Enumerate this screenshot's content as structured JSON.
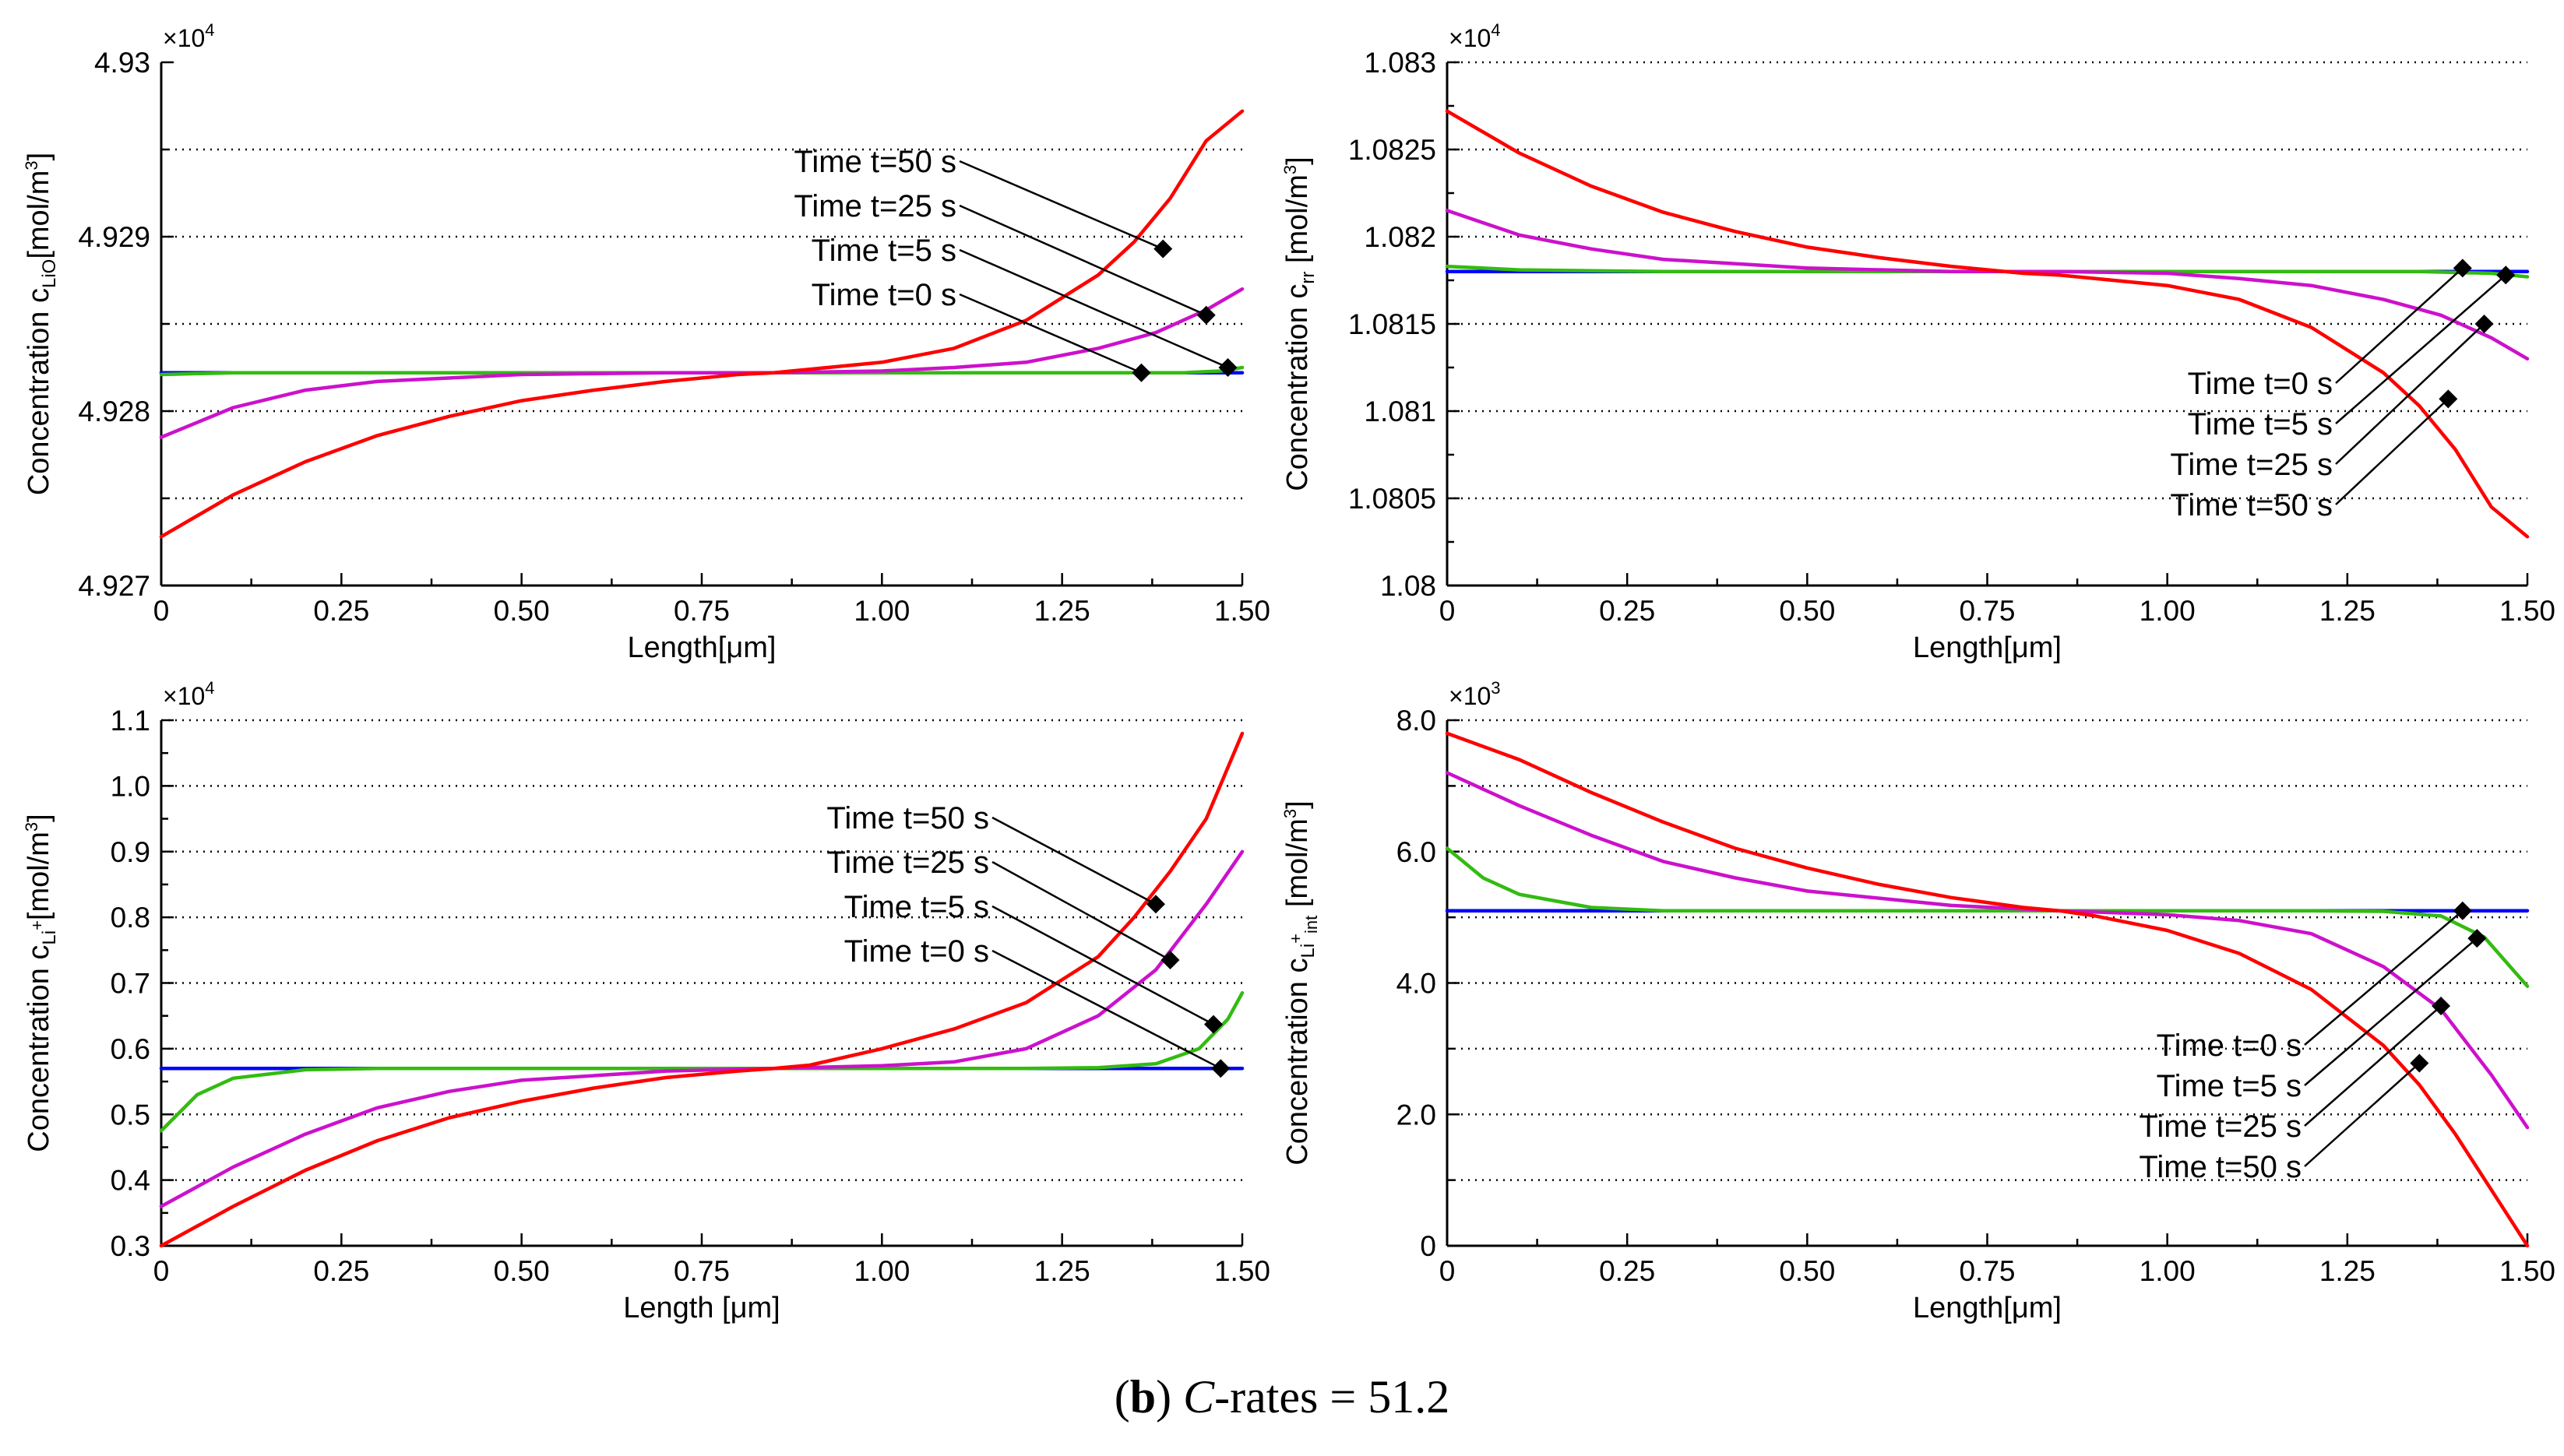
{
  "caption": {
    "prefix": "(",
    "letter": "b",
    "suffix": ") ",
    "italic": "C",
    "rest": "-rates = 51.2"
  },
  "chart_data": [
    {
      "type": "line",
      "panel": "top-left",
      "multiplier": {
        "base": "×10",
        "exp": "4"
      },
      "xlabel": {
        "main": "Length[",
        "unit": "μ",
        "tail": "m]"
      },
      "ylabel": {
        "pre": "Concentration c",
        "sub": "LiO",
        "post": "[mol/m",
        "sup": "3",
        "end": "]"
      },
      "xlim": [
        0,
        1.5
      ],
      "ylim": [
        4.927,
        4.93
      ],
      "xticks": [
        0,
        0.25,
        0.5,
        0.75,
        1.0,
        1.25,
        1.5
      ],
      "xtick_labels": [
        "0",
        "0.25",
        "0.50",
        "0.75",
        "1.00",
        "1.25",
        "1.50"
      ],
      "yticks": [
        4.927,
        4.928,
        4.929,
        4.93
      ],
      "ytick_labels": [
        "4.927",
        "4.928",
        "4.929",
        "4.93"
      ],
      "ygrid": [
        4.9275,
        4.928,
        4.9285,
        4.929,
        4.9295
      ],
      "series": [
        {
          "name": "Time t=0 s",
          "color": "#0000ff",
          "x": [
            0,
            1.5
          ],
          "y": [
            4.92822,
            4.92822
          ]
        },
        {
          "name": "Time t=5 s",
          "color": "#33bb11",
          "x": [
            0,
            0.1,
            0.3,
            0.6,
            0.9,
            1.2,
            1.35,
            1.42,
            1.47,
            1.5
          ],
          "y": [
            4.92821,
            4.92822,
            4.92822,
            4.92822,
            4.92822,
            4.92822,
            4.92822,
            4.92822,
            4.92823,
            4.92825
          ]
        },
        {
          "name": "Time t=25 s",
          "color": "#cc11cc",
          "x": [
            0,
            0.1,
            0.2,
            0.3,
            0.5,
            0.7,
            0.85,
            1.0,
            1.1,
            1.2,
            1.3,
            1.38,
            1.45,
            1.5
          ],
          "y": [
            4.92785,
            4.92802,
            4.92812,
            4.92817,
            4.92821,
            4.92822,
            4.92822,
            4.92823,
            4.92825,
            4.92828,
            4.92836,
            4.92845,
            4.92858,
            4.9287
          ]
        },
        {
          "name": "Time t=50 s",
          "color": "#ff0000",
          "x": [
            0,
            0.1,
            0.2,
            0.3,
            0.4,
            0.5,
            0.6,
            0.7,
            0.8,
            0.85,
            0.9,
            1.0,
            1.1,
            1.2,
            1.3,
            1.35,
            1.4,
            1.45,
            1.5
          ],
          "y": [
            4.92728,
            4.92752,
            4.92771,
            4.92786,
            4.92797,
            4.92806,
            4.92812,
            4.92817,
            4.92821,
            4.92822,
            4.92824,
            4.92828,
            4.92836,
            4.92852,
            4.92878,
            4.92897,
            4.92922,
            4.92955,
            4.92972
          ]
        }
      ],
      "markers": [
        {
          "x": 1.39,
          "y": 4.92893
        },
        {
          "x": 1.45,
          "y": 4.92855
        },
        {
          "x": 1.48,
          "y": 4.92825
        },
        {
          "x": 1.36,
          "y": 4.92822
        }
      ],
      "annotations": [
        "Time t=50 s",
        "Time t=25 s",
        "Time t=5 s",
        "Time t=0 s"
      ]
    },
    {
      "type": "line",
      "panel": "top-right",
      "multiplier": {
        "base": "×10",
        "exp": "4"
      },
      "xlabel": {
        "main": "Length[",
        "unit": "μ",
        "tail": "m]"
      },
      "ylabel": {
        "pre": "Concentration c",
        "sub": "rr",
        "post": " [mol/m",
        "sup": "3",
        "end": "]"
      },
      "xlim": [
        0,
        1.5
      ],
      "ylim": [
        1.08,
        1.083
      ],
      "xticks": [
        0,
        0.25,
        0.5,
        0.75,
        1.0,
        1.25,
        1.5
      ],
      "xtick_labels": [
        "0",
        "0.25",
        "0.50",
        "0.75",
        "1.00",
        "1.25",
        "1.50"
      ],
      "yticks": [
        1.08,
        1.0805,
        1.081,
        1.0815,
        1.082,
        1.0825,
        1.083
      ],
      "ytick_labels": [
        "1.08",
        "1.0805",
        "1.081",
        "1.0815",
        "1.082",
        "1.0825",
        "1.083"
      ],
      "ygrid": [
        1.0805,
        1.081,
        1.0815,
        1.082,
        1.0825,
        1.083
      ],
      "series": [
        {
          "name": "Time t=0 s",
          "color": "#0000ff",
          "x": [
            0,
            1.5
          ],
          "y": [
            1.0818,
            1.0818
          ]
        },
        {
          "name": "Time t=5 s",
          "color": "#33bb11",
          "x": [
            0,
            0.1,
            0.3,
            0.6,
            0.9,
            1.2,
            1.35,
            1.45,
            1.5
          ],
          "y": [
            1.08183,
            1.08181,
            1.0818,
            1.0818,
            1.0818,
            1.0818,
            1.0818,
            1.08179,
            1.08177
          ]
        },
        {
          "name": "Time t=25 s",
          "color": "#cc11cc",
          "x": [
            0,
            0.1,
            0.2,
            0.3,
            0.5,
            0.7,
            0.85,
            1.0,
            1.1,
            1.2,
            1.3,
            1.38,
            1.45,
            1.5
          ],
          "y": [
            1.08215,
            1.08201,
            1.08193,
            1.08187,
            1.08182,
            1.0818,
            1.0818,
            1.08179,
            1.08176,
            1.08172,
            1.08164,
            1.08155,
            1.08142,
            1.0813
          ]
        },
        {
          "name": "Time t=50 s",
          "color": "#ff0000",
          "x": [
            0,
            0.1,
            0.2,
            0.3,
            0.4,
            0.5,
            0.6,
            0.7,
            0.8,
            0.85,
            0.9,
            1.0,
            1.1,
            1.2,
            1.3,
            1.35,
            1.4,
            1.45,
            1.5
          ],
          "y": [
            1.08272,
            1.08248,
            1.08229,
            1.08214,
            1.08203,
            1.08194,
            1.08188,
            1.08183,
            1.08179,
            1.08178,
            1.08176,
            1.08172,
            1.08164,
            1.08148,
            1.08122,
            1.08103,
            1.08078,
            1.08045,
            1.08028
          ]
        }
      ],
      "markers": [
        {
          "x": 1.41,
          "y": 1.08182
        },
        {
          "x": 1.47,
          "y": 1.08178
        },
        {
          "x": 1.44,
          "y": 1.0815
        },
        {
          "x": 1.39,
          "y": 1.08107
        }
      ],
      "annotations": [
        "Time t=0 s",
        "Time t=5 s",
        "Time t=25 s",
        "Time t=50 s"
      ]
    },
    {
      "type": "line",
      "panel": "bottom-left",
      "multiplier": {
        "base": "×10",
        "exp": "4"
      },
      "xlabel": {
        "main": "Length [",
        "unit": "μ",
        "tail": "m]"
      },
      "ylabel": {
        "pre": "Concentration c",
        "sub": "Li",
        "subsup": "+",
        "post": "[mol/m",
        "sup": "3",
        "end": "]"
      },
      "xlim": [
        0,
        1.5
      ],
      "ylim": [
        0.3,
        1.1
      ],
      "xticks": [
        0,
        0.25,
        0.5,
        0.75,
        1.0,
        1.25,
        1.5
      ],
      "xtick_labels": [
        "0",
        "0.25",
        "0.50",
        "0.75",
        "1.00",
        "1.25",
        "1.50"
      ],
      "yticks": [
        0.3,
        0.4,
        0.5,
        0.6,
        0.7,
        0.8,
        0.9,
        1.0,
        1.1
      ],
      "ytick_labels": [
        "0.3",
        "0.4",
        "0.5",
        "0.6",
        "0.7",
        "0.8",
        "0.9",
        "1.0",
        "1.1"
      ],
      "ygrid": [
        0.4,
        0.5,
        0.6,
        0.7,
        0.8,
        0.9,
        1.0,
        1.1
      ],
      "series": [
        {
          "name": "Time t=0 s",
          "color": "#0000ff",
          "x": [
            0,
            1.5
          ],
          "y": [
            0.57,
            0.57
          ]
        },
        {
          "name": "Time t=5 s",
          "color": "#33bb11",
          "x": [
            0,
            0.05,
            0.1,
            0.2,
            0.3,
            0.6,
            0.9,
            1.2,
            1.3,
            1.38,
            1.44,
            1.48,
            1.5
          ],
          "y": [
            0.475,
            0.53,
            0.555,
            0.568,
            0.57,
            0.57,
            0.57,
            0.57,
            0.571,
            0.577,
            0.6,
            0.645,
            0.685
          ]
        },
        {
          "name": "Time t=25 s",
          "color": "#cc11cc",
          "x": [
            0,
            0.1,
            0.2,
            0.3,
            0.4,
            0.5,
            0.7,
            0.85,
            1.0,
            1.1,
            1.2,
            1.3,
            1.38,
            1.45,
            1.5
          ],
          "y": [
            0.36,
            0.42,
            0.47,
            0.51,
            0.535,
            0.552,
            0.566,
            0.57,
            0.574,
            0.58,
            0.6,
            0.65,
            0.72,
            0.82,
            0.9
          ]
        },
        {
          "name": "Time t=50 s",
          "color": "#ff0000",
          "x": [
            0,
            0.1,
            0.2,
            0.3,
            0.4,
            0.5,
            0.6,
            0.7,
            0.8,
            0.85,
            0.9,
            1.0,
            1.1,
            1.2,
            1.3,
            1.35,
            1.4,
            1.45,
            1.5
          ],
          "y": [
            0.3,
            0.36,
            0.415,
            0.46,
            0.495,
            0.52,
            0.54,
            0.556,
            0.566,
            0.57,
            0.575,
            0.6,
            0.63,
            0.67,
            0.74,
            0.8,
            0.87,
            0.95,
            1.08
          ]
        }
      ],
      "markers": [
        {
          "x": 1.38,
          "y": 0.82
        },
        {
          "x": 1.4,
          "y": 0.735
        },
        {
          "x": 1.46,
          "y": 0.637
        },
        {
          "x": 1.47,
          "y": 0.57
        }
      ],
      "annotations": [
        "Time t=50 s",
        "Time t=25 s",
        "Time t=5 s",
        "Time t=0 s"
      ]
    },
    {
      "type": "line",
      "panel": "bottom-right",
      "multiplier": {
        "base": "×10",
        "exp": "3"
      },
      "xlabel": {
        "main": "Length[",
        "unit": "μ",
        "tail": "m]"
      },
      "ylabel": {
        "pre": "Concentration c",
        "sub": "Li",
        "subsup": "+",
        "subsub": "int",
        "post": " [mol/m",
        "sup": "3",
        "end": "]"
      },
      "xlim": [
        0,
        1.5
      ],
      "ylim": [
        0,
        8.0
      ],
      "xticks": [
        0,
        0.25,
        0.5,
        0.75,
        1.0,
        1.25,
        1.5
      ],
      "xtick_labels": [
        "0",
        "0.25",
        "0.50",
        "0.75",
        "1.00",
        "1.25",
        "1.50"
      ],
      "yticks": [
        0,
        2.0,
        4.0,
        6.0,
        8.0
      ],
      "ytick_labels": [
        "0",
        "2.0",
        "4.0",
        "6.0",
        "8.0"
      ],
      "ygrid": [
        1,
        2,
        3,
        4,
        5,
        6,
        7,
        8
      ],
      "series": [
        {
          "name": "Time t=0 s",
          "color": "#0000ff",
          "x": [
            0,
            1.5
          ],
          "y": [
            5.1,
            5.1
          ]
        },
        {
          "name": "Time t=5 s",
          "color": "#33bb11",
          "x": [
            0,
            0.05,
            0.1,
            0.2,
            0.3,
            0.6,
            0.9,
            1.2,
            1.3,
            1.38,
            1.44,
            1.48,
            1.5
          ],
          "y": [
            6.05,
            5.6,
            5.35,
            5.15,
            5.1,
            5.1,
            5.1,
            5.1,
            5.09,
            5.02,
            4.7,
            4.2,
            3.95
          ]
        },
        {
          "name": "Time t=25 s",
          "color": "#cc11cc",
          "x": [
            0,
            0.1,
            0.2,
            0.3,
            0.4,
            0.5,
            0.7,
            0.85,
            1.0,
            1.1,
            1.2,
            1.3,
            1.38,
            1.45,
            1.5
          ],
          "y": [
            7.2,
            6.7,
            6.25,
            5.85,
            5.6,
            5.4,
            5.18,
            5.1,
            5.04,
            4.95,
            4.75,
            4.25,
            3.6,
            2.6,
            1.8
          ]
        },
        {
          "name": "Time t=50 s",
          "color": "#ff0000",
          "x": [
            0,
            0.1,
            0.2,
            0.3,
            0.4,
            0.5,
            0.6,
            0.7,
            0.8,
            0.85,
            0.9,
            1.0,
            1.1,
            1.2,
            1.3,
            1.35,
            1.4,
            1.45,
            1.5
          ],
          "y": [
            7.8,
            7.4,
            6.9,
            6.45,
            6.05,
            5.75,
            5.5,
            5.3,
            5.15,
            5.1,
            5.02,
            4.8,
            4.45,
            3.9,
            3.05,
            2.45,
            1.7,
            0.85,
            0
          ]
        }
      ],
      "markers": [
        {
          "x": 1.41,
          "y": 5.1
        },
        {
          "x": 1.43,
          "y": 4.68
        },
        {
          "x": 1.38,
          "y": 3.65
        },
        {
          "x": 1.35,
          "y": 2.78
        }
      ],
      "annotations": [
        "Time t=0 s",
        "Time t=5 s",
        "Time t=25 s",
        "Time t=50 s"
      ]
    }
  ]
}
